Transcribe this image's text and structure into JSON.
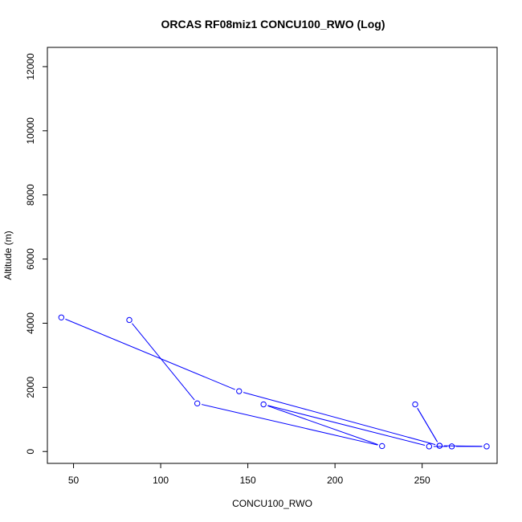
{
  "chart_data": {
    "type": "line",
    "title": "ORCAS RF08miz1 CONCU100_RWO (Log)",
    "xlabel": "CONCU100_RWO",
    "ylabel": "Altitude (m)",
    "xlim": [
      35,
      293
    ],
    "ylim": [
      -370,
      12600
    ],
    "x_ticks": [
      50,
      100,
      150,
      200,
      250
    ],
    "y_ticks": [
      0,
      2000,
      4000,
      6000,
      8000,
      10000,
      12000
    ],
    "grid": false,
    "line_color": "#0000ff",
    "marker": "open-circle",
    "series": [
      {
        "x": [
          43,
          145,
          260,
          246,
          260,
          287,
          267,
          254,
          159,
          227,
          121,
          82
        ],
        "y": [
          4180,
          1880,
          180,
          1470,
          180,
          160,
          160,
          160,
          1470,
          170,
          1500,
          4100
        ]
      }
    ]
  }
}
